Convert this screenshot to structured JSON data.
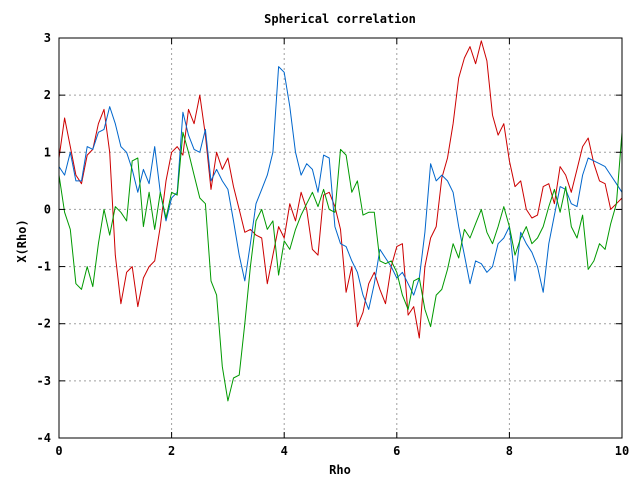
{
  "chart_data": {
    "type": "line",
    "title": "Spherical correlation",
    "xlabel": "Rho",
    "ylabel": "X(Rho)",
    "xlim": [
      0,
      10
    ],
    "ylim": [
      -4,
      3
    ],
    "x_ticks": [
      "0",
      "2",
      "4",
      "6",
      "8",
      "10"
    ],
    "y_ticks": [
      "3",
      "2",
      "1",
      "0",
      "-1",
      "-2",
      "-3",
      "-4"
    ],
    "grid": true,
    "legend": "none",
    "series": [
      {
        "color": "#cc0000",
        "x": [
          0,
          0.1,
          0.2,
          0.3,
          0.4,
          0.5,
          0.6,
          0.7,
          0.8,
          0.9,
          1.0,
          1.1,
          1.2,
          1.3,
          1.4,
          1.5,
          1.6,
          1.7,
          1.8,
          1.9,
          2.0,
          2.1,
          2.2,
          2.3,
          2.4,
          2.5,
          2.6,
          2.7,
          2.8,
          2.9,
          3.0,
          3.1,
          3.2,
          3.3,
          3.4,
          3.5,
          3.6,
          3.7,
          3.8,
          3.9,
          4.0,
          4.1,
          4.2,
          4.3,
          4.4,
          4.5,
          4.6,
          4.7,
          4.8,
          4.9,
          5.0,
          5.1,
          5.2,
          5.3,
          5.4,
          5.5,
          5.6,
          5.7,
          5.8,
          5.9,
          6.0,
          6.1,
          6.2,
          6.3,
          6.4,
          6.5,
          6.6,
          6.7,
          6.8,
          6.9,
          7.0,
          7.1,
          7.2,
          7.3,
          7.4,
          7.5,
          7.6,
          7.7,
          7.8,
          7.9,
          8.0,
          8.1,
          8.2,
          8.3,
          8.4,
          8.5,
          8.6,
          8.7,
          8.8,
          8.9,
          9.0,
          9.1,
          9.2,
          9.3,
          9.4,
          9.5,
          9.6,
          9.7,
          9.8,
          9.9,
          10.0
        ],
        "y": [
          0.9,
          1.6,
          1.1,
          0.6,
          0.45,
          0.95,
          1.05,
          1.5,
          1.75,
          1.0,
          -0.8,
          -1.65,
          -1.1,
          -1.0,
          -1.7,
          -1.2,
          -1.0,
          -0.9,
          -0.3,
          0.5,
          1.0,
          1.1,
          0.95,
          1.75,
          1.5,
          2.0,
          1.3,
          0.35,
          1.0,
          0.7,
          0.9,
          0.4,
          0.0,
          -0.4,
          -0.35,
          -0.45,
          -0.5,
          -1.3,
          -0.8,
          -0.3,
          -0.5,
          0.1,
          -0.2,
          0.3,
          0.0,
          -0.7,
          -0.8,
          0.25,
          0.3,
          0.05,
          -0.35,
          -1.45,
          -1.0,
          -2.05,
          -1.8,
          -1.3,
          -1.1,
          -1.4,
          -1.65,
          -1.0,
          -0.65,
          -0.6,
          -1.85,
          -1.7,
          -2.25,
          -1.0,
          -0.5,
          -0.3,
          0.55,
          0.9,
          1.5,
          2.3,
          2.65,
          2.85,
          2.55,
          2.95,
          2.6,
          1.65,
          1.3,
          1.5,
          0.85,
          0.4,
          0.5,
          0.0,
          -0.15,
          -0.1,
          0.4,
          0.45,
          0.1,
          0.75,
          0.6,
          0.3,
          0.7,
          1.1,
          1.25,
          0.8,
          0.5,
          0.45,
          0.0,
          0.1,
          0.2
        ]
      },
      {
        "color": "#0066cc",
        "x": [
          0,
          0.1,
          0.2,
          0.3,
          0.4,
          0.5,
          0.6,
          0.7,
          0.8,
          0.9,
          1.0,
          1.1,
          1.2,
          1.3,
          1.4,
          1.5,
          1.6,
          1.7,
          1.8,
          1.9,
          2.0,
          2.1,
          2.2,
          2.3,
          2.4,
          2.5,
          2.6,
          2.7,
          2.8,
          2.9,
          3.0,
          3.1,
          3.2,
          3.3,
          3.4,
          3.5,
          3.6,
          3.7,
          3.8,
          3.9,
          4.0,
          4.1,
          4.2,
          4.3,
          4.4,
          4.5,
          4.6,
          4.7,
          4.8,
          4.9,
          5.0,
          5.1,
          5.2,
          5.3,
          5.4,
          5.5,
          5.6,
          5.7,
          5.8,
          5.9,
          6.0,
          6.1,
          6.2,
          6.3,
          6.4,
          6.5,
          6.6,
          6.7,
          6.8,
          6.9,
          7.0,
          7.1,
          7.2,
          7.3,
          7.4,
          7.5,
          7.6,
          7.7,
          7.8,
          7.9,
          8.0,
          8.1,
          8.2,
          8.3,
          8.4,
          8.5,
          8.6,
          8.7,
          8.8,
          8.9,
          9.0,
          9.1,
          9.2,
          9.3,
          9.4,
          9.5,
          9.6,
          9.7,
          9.8,
          9.9,
          10.0
        ],
        "y": [
          0.75,
          0.6,
          1.0,
          0.5,
          0.5,
          1.1,
          1.05,
          1.35,
          1.4,
          1.8,
          1.5,
          1.1,
          1.0,
          0.7,
          0.3,
          0.7,
          0.45,
          1.1,
          0.3,
          -0.2,
          0.2,
          0.3,
          1.7,
          1.3,
          1.05,
          1.0,
          1.4,
          0.5,
          0.7,
          0.5,
          0.35,
          -0.2,
          -0.8,
          -1.25,
          -0.6,
          0.1,
          0.35,
          0.6,
          1.0,
          2.5,
          2.4,
          1.8,
          1.0,
          0.6,
          0.8,
          0.7,
          0.3,
          0.95,
          0.9,
          -0.3,
          -0.6,
          -0.65,
          -0.9,
          -1.1,
          -1.5,
          -1.75,
          -1.3,
          -0.7,
          -0.85,
          -1.0,
          -1.2,
          -1.1,
          -1.3,
          -1.5,
          -1.2,
          -0.4,
          0.8,
          0.5,
          0.6,
          0.5,
          0.3,
          -0.3,
          -0.8,
          -1.3,
          -0.9,
          -0.95,
          -1.1,
          -1.0,
          -0.6,
          -0.5,
          -0.3,
          -1.25,
          -0.4,
          -0.6,
          -0.75,
          -1.0,
          -1.45,
          -0.6,
          -0.1,
          0.4,
          0.35,
          0.1,
          0.05,
          0.6,
          0.9,
          0.85,
          0.8,
          0.75,
          0.6,
          0.45,
          0.3
        ]
      },
      {
        "color": "#009900",
        "x": [
          0,
          0.1,
          0.2,
          0.3,
          0.4,
          0.5,
          0.6,
          0.7,
          0.8,
          0.9,
          1.0,
          1.1,
          1.2,
          1.3,
          1.4,
          1.5,
          1.6,
          1.7,
          1.8,
          1.9,
          2.0,
          2.1,
          2.2,
          2.3,
          2.4,
          2.5,
          2.6,
          2.7,
          2.8,
          2.9,
          3.0,
          3.1,
          3.2,
          3.3,
          3.4,
          3.5,
          3.6,
          3.7,
          3.8,
          3.9,
          4.0,
          4.1,
          4.2,
          4.3,
          4.4,
          4.5,
          4.6,
          4.7,
          4.8,
          4.9,
          5.0,
          5.1,
          5.2,
          5.3,
          5.4,
          5.5,
          5.6,
          5.7,
          5.8,
          5.9,
          6.0,
          6.1,
          6.2,
          6.3,
          6.4,
          6.5,
          6.6,
          6.7,
          6.8,
          6.9,
          7.0,
          7.1,
          7.2,
          7.3,
          7.4,
          7.5,
          7.6,
          7.7,
          7.8,
          7.9,
          8.0,
          8.1,
          8.2,
          8.3,
          8.4,
          8.5,
          8.6,
          8.7,
          8.8,
          8.9,
          9.0,
          9.1,
          9.2,
          9.3,
          9.4,
          9.5,
          9.6,
          9.7,
          9.8,
          9.9,
          10.0
        ],
        "y": [
          0.6,
          -0.05,
          -0.35,
          -1.3,
          -1.4,
          -1.0,
          -1.35,
          -0.6,
          0.0,
          -0.45,
          0.05,
          -0.05,
          -0.2,
          0.85,
          0.9,
          -0.3,
          0.3,
          -0.35,
          0.3,
          -0.15,
          0.3,
          0.25,
          1.35,
          1.0,
          0.6,
          0.2,
          0.1,
          -1.25,
          -1.5,
          -2.75,
          -3.35,
          -2.95,
          -2.9,
          -2.0,
          -1.0,
          -0.2,
          0.0,
          -0.35,
          -0.2,
          -1.15,
          -0.55,
          -0.7,
          -0.35,
          -0.1,
          0.1,
          0.3,
          0.05,
          0.35,
          0.0,
          -0.05,
          1.05,
          0.95,
          0.3,
          0.5,
          -0.1,
          -0.05,
          -0.05,
          -0.9,
          -0.95,
          -0.9,
          -1.1,
          -1.5,
          -1.75,
          -1.25,
          -1.2,
          -1.75,
          -2.05,
          -1.5,
          -1.4,
          -1.05,
          -0.6,
          -0.85,
          -0.35,
          -0.5,
          -0.25,
          0.0,
          -0.4,
          -0.6,
          -0.3,
          0.05,
          -0.3,
          -0.8,
          -0.5,
          -0.3,
          -0.6,
          -0.5,
          -0.3,
          0.05,
          0.35,
          -0.05,
          0.4,
          -0.3,
          -0.5,
          -0.1,
          -1.05,
          -0.9,
          -0.6,
          -0.7,
          -0.25,
          0.1,
          1.35
        ]
      }
    ]
  }
}
